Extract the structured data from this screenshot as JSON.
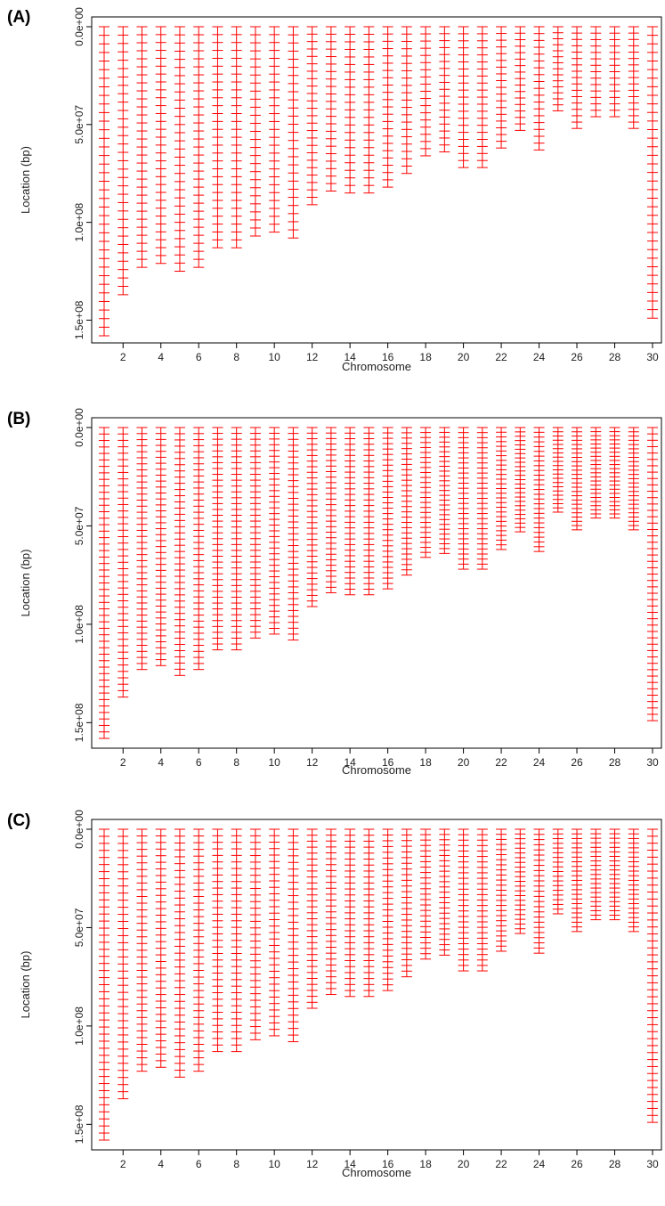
{
  "chart_data": [
    {
      "type": "scatter",
      "panel_label": "(A)",
      "xlabel": "Chromosome",
      "ylabel": "Location (bp)",
      "x_ticks": [
        2,
        4,
        6,
        8,
        10,
        12,
        14,
        16,
        18,
        20,
        22,
        24,
        26,
        28,
        30
      ],
      "x_tick_labels": [
        "2",
        "4",
        "6",
        "8",
        "10",
        "12",
        "14",
        "16",
        "18",
        "20",
        "22",
        "24",
        "26",
        "28",
        "30"
      ],
      "y_ticks": [
        0,
        50000000,
        100000000,
        150000000
      ],
      "y_tick_labels": [
        "0.0e+00",
        "5.0e+07",
        "1.0e+08",
        "1.5e+08"
      ],
      "y_reversed": true,
      "xlim": [
        0.5,
        30.5
      ],
      "ylim": [
        0,
        158000000
      ],
      "marker": "horizontal dash",
      "color": "#ff0000",
      "chromosomes": [
        1,
        2,
        3,
        4,
        5,
        6,
        7,
        8,
        9,
        10,
        11,
        12,
        13,
        14,
        15,
        16,
        17,
        18,
        19,
        20,
        21,
        22,
        23,
        24,
        25,
        26,
        27,
        28,
        29,
        30
      ],
      "max_location": [
        158000000,
        137000000,
        123000000,
        121000000,
        125000000,
        123000000,
        113000000,
        113000000,
        107000000,
        105000000,
        108000000,
        91000000,
        84000000,
        85000000,
        85000000,
        82000000,
        75000000,
        66000000,
        64000000,
        72000000,
        72000000,
        62000000,
        53000000,
        63000000,
        43000000,
        52000000,
        46000000,
        46000000,
        52000000,
        149000000
      ],
      "marks_per_chromosome": [
        36,
        32,
        30,
        30,
        30,
        30,
        28,
        28,
        26,
        26,
        26,
        24,
        22,
        22,
        22,
        22,
        20,
        18,
        18,
        20,
        20,
        18,
        16,
        18,
        14,
        16,
        14,
        14,
        16,
        34
      ]
    },
    {
      "type": "scatter",
      "panel_label": "(B)",
      "xlabel": "Chromosome",
      "ylabel": "Location (bp)",
      "x_ticks": [
        2,
        4,
        6,
        8,
        10,
        12,
        14,
        16,
        18,
        20,
        22,
        24,
        26,
        28,
        30
      ],
      "x_tick_labels": [
        "2",
        "4",
        "6",
        "8",
        "10",
        "12",
        "14",
        "16",
        "18",
        "20",
        "22",
        "24",
        "26",
        "28",
        "30"
      ],
      "y_ticks": [
        0,
        50000000,
        100000000,
        150000000
      ],
      "y_tick_labels": [
        "0.0e+00",
        "5.0e+07",
        "1.0e+08",
        "1.5e+08"
      ],
      "y_reversed": true,
      "xlim": [
        0.5,
        30.5
      ],
      "ylim": [
        0,
        158000000
      ],
      "marker": "horizontal dash",
      "color": "#ff0000",
      "chromosomes": [
        1,
        2,
        3,
        4,
        5,
        6,
        7,
        8,
        9,
        10,
        11,
        12,
        13,
        14,
        15,
        16,
        17,
        18,
        19,
        20,
        21,
        22,
        23,
        24,
        25,
        26,
        27,
        28,
        29,
        30
      ],
      "max_location": [
        158000000,
        137000000,
        123000000,
        121000000,
        126000000,
        123000000,
        113000000,
        113000000,
        107000000,
        105000000,
        108000000,
        91000000,
        84000000,
        85000000,
        85000000,
        82000000,
        75000000,
        66000000,
        64000000,
        72000000,
        72000000,
        62000000,
        53000000,
        63000000,
        43000000,
        52000000,
        46000000,
        46000000,
        52000000,
        149000000
      ],
      "marks_per_chromosome": [
        48,
        42,
        40,
        40,
        40,
        40,
        38,
        38,
        36,
        36,
        36,
        32,
        30,
        30,
        30,
        30,
        28,
        26,
        26,
        28,
        28,
        26,
        24,
        26,
        20,
        24,
        22,
        22,
        24,
        46
      ]
    },
    {
      "type": "scatter",
      "panel_label": "(C)",
      "xlabel": "Chromosome",
      "ylabel": "Location (bp)",
      "x_ticks": [
        2,
        4,
        6,
        8,
        10,
        12,
        14,
        16,
        18,
        20,
        22,
        24,
        26,
        28,
        30
      ],
      "x_tick_labels": [
        "2",
        "4",
        "6",
        "8",
        "10",
        "12",
        "14",
        "16",
        "18",
        "20",
        "22",
        "24",
        "26",
        "28",
        "30"
      ],
      "y_ticks": [
        0,
        50000000,
        100000000,
        150000000
      ],
      "y_tick_labels": [
        "0.0e+00",
        "5.0e+07",
        "1.0e+08",
        "1.5e+08"
      ],
      "y_reversed": true,
      "xlim": [
        0.5,
        30.5
      ],
      "ylim": [
        0,
        158000000
      ],
      "marker": "horizontal dash",
      "color": "#ff0000",
      "chromosomes": [
        1,
        2,
        3,
        4,
        5,
        6,
        7,
        8,
        9,
        10,
        11,
        12,
        13,
        14,
        15,
        16,
        17,
        18,
        19,
        20,
        21,
        22,
        23,
        24,
        25,
        26,
        27,
        28,
        29,
        30
      ],
      "max_location": [
        158000000,
        137000000,
        123000000,
        121000000,
        126000000,
        123000000,
        113000000,
        113000000,
        107000000,
        105000000,
        108000000,
        91000000,
        84000000,
        85000000,
        85000000,
        82000000,
        75000000,
        66000000,
        64000000,
        72000000,
        72000000,
        62000000,
        53000000,
        63000000,
        43000000,
        52000000,
        46000000,
        46000000,
        52000000,
        149000000
      ],
      "marks_per_chromosome": [
        44,
        38,
        36,
        36,
        36,
        36,
        34,
        34,
        32,
        32,
        32,
        30,
        28,
        28,
        28,
        28,
        26,
        24,
        24,
        26,
        26,
        24,
        22,
        24,
        18,
        22,
        20,
        20,
        22,
        42
      ]
    }
  ]
}
